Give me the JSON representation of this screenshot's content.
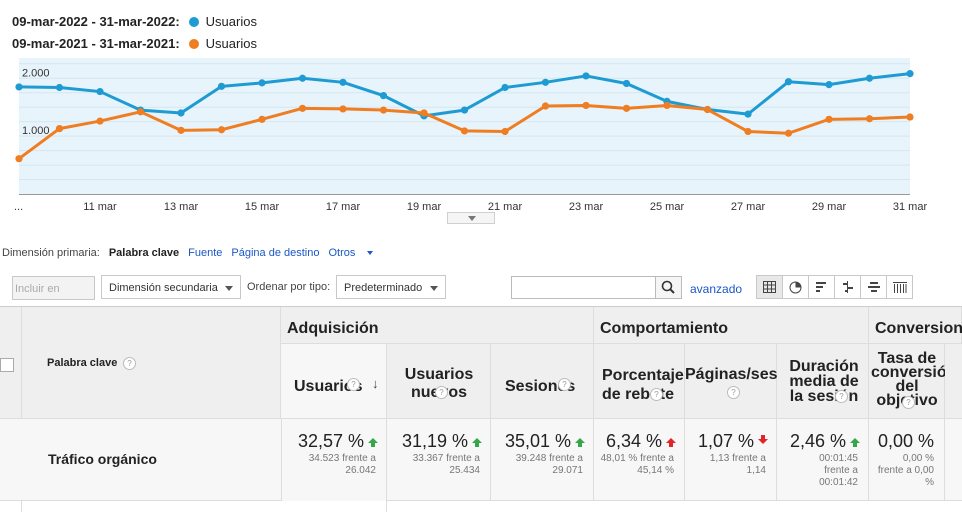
{
  "legend": [
    {
      "range": "09-mar-2022 - 31-mar-2022:",
      "metric": "Usuarios",
      "color": "#1e9bd2"
    },
    {
      "range": "09-mar-2021 - 31-mar-2021:",
      "metric": "Usuarios",
      "color": "#ef7d22"
    }
  ],
  "chart_data": {
    "type": "line",
    "y_ticks": [
      "2.000",
      "1.000"
    ],
    "x_tick_labels": [
      "...",
      "11 mar",
      "13 mar",
      "15 mar",
      "17 mar",
      "19 mar",
      "21 mar",
      "23 mar",
      "25 mar",
      "27 mar",
      "29 mar",
      "31 mar"
    ],
    "x": [
      "9 mar",
      "10 mar",
      "11 mar",
      "12 mar",
      "13 mar",
      "14 mar",
      "15 mar",
      "16 mar",
      "17 mar",
      "18 mar",
      "19 mar",
      "20 mar",
      "21 mar",
      "22 mar",
      "23 mar",
      "24 mar",
      "25 mar",
      "26 mar",
      "27 mar",
      "28 mar",
      "29 mar",
      "30 mar",
      "31 mar"
    ],
    "ylim": [
      0,
      2350
    ],
    "grid": true,
    "series": [
      {
        "name": "Usuarios",
        "color": "#1e9bd2",
        "values": [
          1850,
          1840,
          1770,
          1450,
          1400,
          1860,
          1920,
          2000,
          1930,
          1700,
          1350,
          1450,
          1840,
          1930,
          2040,
          1910,
          1600,
          1460,
          1380,
          1940,
          1890,
          2000,
          2080
        ]
      },
      {
        "name": "Usuarios",
        "color": "#ef7d22",
        "values": [
          610,
          1130,
          1260,
          1420,
          1100,
          1110,
          1290,
          1480,
          1470,
          1450,
          1400,
          1090,
          1080,
          1520,
          1530,
          1480,
          1530,
          1460,
          1080,
          1050,
          1290,
          1300,
          1330
        ]
      }
    ]
  },
  "primary_dimension": {
    "label": "Dimensión primaria:",
    "active": "Palabra clave",
    "links": [
      "Fuente",
      "Página de destino"
    ],
    "others": "Otros"
  },
  "toolbar": {
    "include_chart": "Incluir en gráfico",
    "secondary_dimension": "Dimensión secundaria",
    "sort_label": "Ordenar por tipo:",
    "sort_value": "Predeterminado",
    "search_value": "",
    "advanced": "avanzado",
    "icons": [
      "grid-view-icon",
      "pie-view-icon",
      "bar-view-icon",
      "comparison-view-icon",
      "term-cloud-icon",
      "pivot-view-icon"
    ]
  },
  "table": {
    "keyword_header": "Palabra clave",
    "group_acquisition": "Adquisición",
    "group_behavior": "Comportamiento",
    "group_conversions": "Conversiones",
    "cols": {
      "users": "Usuarios",
      "new_users": "Usuarios nuevos",
      "sessions": "Sesiones",
      "bounce": "Porcentaje de rebote",
      "pages": "Páginas/sesión",
      "duration": "Duración media de la sesión",
      "conversion": "Tasa de conversión del objetivo"
    },
    "row": {
      "label": "Tráfico orgánico",
      "users": {
        "value": "32,57 %",
        "detail": "34.523 frente a 26.042"
      },
      "new_users": {
        "value": "31,19 %",
        "detail": "33.367 frente a 25.434"
      },
      "sessions": {
        "value": "35,01 %",
        "detail": "39.248 frente a 29.071"
      },
      "bounce": {
        "value": "6,34 %",
        "detail": "48,01 % frente a 45,14 %"
      },
      "pages": {
        "value": "1,07 %",
        "detail": "1,13 frente a 1,14"
      },
      "duration": {
        "value": "2,46 %",
        "detail": "00:01:45 frente a 00:01:42"
      },
      "conversion": {
        "value": "0,00 %",
        "detail": "0,00 % frente a 0,00 %"
      }
    }
  }
}
